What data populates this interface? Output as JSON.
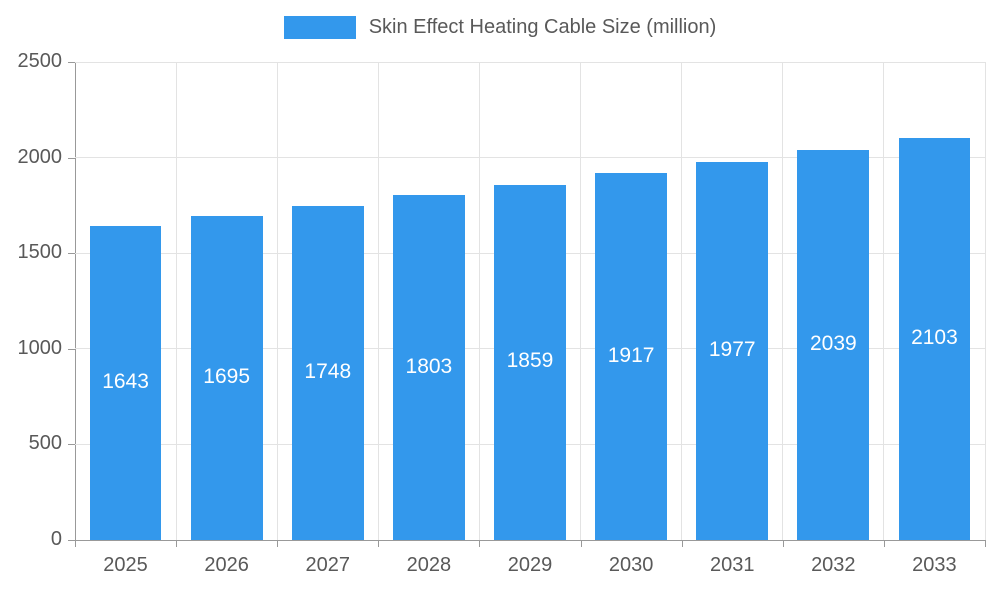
{
  "legend": {
    "label": "Skin Effect Heating Cable Size (million)"
  },
  "colors": {
    "bar": "#3398EC",
    "axis": "#999999",
    "grid": "#E3E3E3",
    "text": "#595959",
    "bar_label": "#FFFFFF",
    "background": "#FFFFFF"
  },
  "chart_data": {
    "type": "bar",
    "title": "Skin Effect Heating Cable Size (million)",
    "categories": [
      "2025",
      "2026",
      "2027",
      "2028",
      "2029",
      "2030",
      "2031",
      "2032",
      "2033"
    ],
    "values": [
      1643,
      1695,
      1748,
      1803,
      1859,
      1917,
      1977,
      2039,
      2103
    ],
    "xlabel": "",
    "ylabel": "",
    "ylim": [
      0,
      2500
    ],
    "yticks": [
      0,
      500,
      1000,
      1500,
      2000,
      2500
    ],
    "grid": true,
    "legend_position": "top",
    "bar_value_labels": "centered-inside"
  }
}
